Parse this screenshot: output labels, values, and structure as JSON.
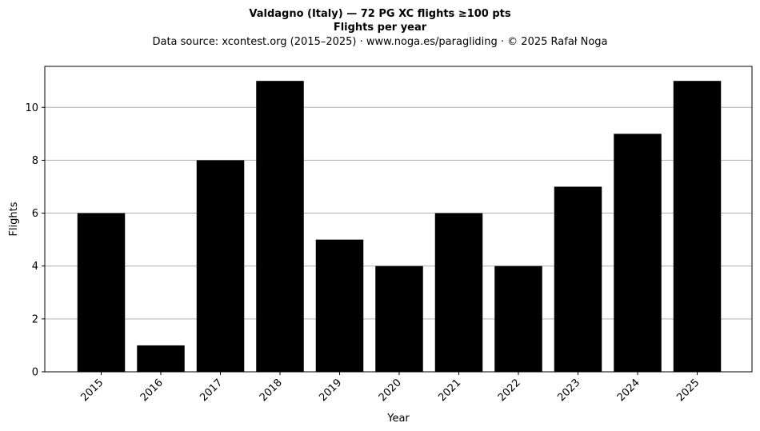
{
  "chart_data": {
    "type": "bar",
    "title": "Valdagno (Italy)  —  72 PG XC flights ≥100 pts",
    "subtitle": "Flights per year",
    "source_note": "Data source: xcontest.org (2015–2025)  ·  www.noga.es/paragliding  ·  © 2025 Rafał Noga",
    "xlabel": "Year",
    "ylabel": "Flights",
    "categories": [
      "2015",
      "2016",
      "2017",
      "2018",
      "2019",
      "2020",
      "2021",
      "2022",
      "2023",
      "2024",
      "2025"
    ],
    "values": [
      6,
      1,
      8,
      11,
      5,
      4,
      6,
      4,
      7,
      9,
      11
    ],
    "ylim": [
      0,
      11.55
    ],
    "yticks": [
      0,
      2,
      4,
      6,
      8,
      10
    ],
    "grid": "horizontal",
    "bar_color": "#000000",
    "grid_color": "#b0b0b0"
  }
}
